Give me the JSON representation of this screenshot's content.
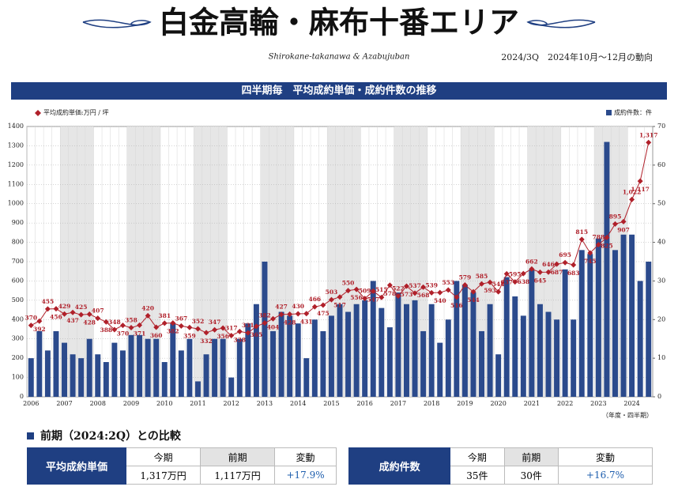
{
  "header": {
    "title": "白金高輪・麻布十番エリア",
    "subtitle": "Shirokane-takanawa & Azabujuban",
    "period": "2024/3Q　2024年10月～12月の動向",
    "section_title": "四半期毎　平均成約単価・成約件数の推移"
  },
  "chart_data": {
    "type": "bar-line",
    "x_note": "（年度・四半期）",
    "categories": [
      "2006",
      null,
      null,
      null,
      "2007",
      null,
      null,
      null,
      "2008",
      null,
      null,
      null,
      "2009",
      null,
      null,
      null,
      "2010",
      null,
      null,
      null,
      "2011",
      null,
      null,
      null,
      "2012",
      null,
      null,
      null,
      "2013",
      null,
      null,
      null,
      "2014",
      null,
      null,
      null,
      "2015",
      null,
      null,
      null,
      "2016",
      null,
      null,
      null,
      "2017",
      null,
      null,
      null,
      "2018",
      null,
      null,
      null,
      "2019",
      null,
      null,
      null,
      "2020",
      null,
      null,
      null,
      "2021",
      null,
      null,
      null,
      "2022",
      null,
      null,
      null,
      "2023",
      null,
      null,
      null,
      "2024",
      null,
      null
    ],
    "series": [
      {
        "name": "成約件数：件",
        "type": "bar",
        "axis": "y2",
        "color": "#2b4a8c",
        "values": [
          10,
          17,
          12,
          17,
          14,
          11,
          10,
          15,
          11,
          9,
          14,
          12,
          16,
          16,
          15,
          15,
          9,
          19,
          12,
          15,
          4,
          11,
          15,
          15,
          5,
          15,
          19,
          24,
          35,
          17,
          22,
          21,
          19,
          10,
          20,
          17,
          21,
          24,
          22,
          24,
          25,
          30,
          23,
          18,
          27,
          24,
          25,
          17,
          24,
          14,
          20,
          30,
          29,
          27,
          17,
          24,
          11,
          31,
          26,
          21,
          33,
          24,
          22,
          20,
          33,
          20,
          38,
          37,
          41,
          66,
          38,
          42,
          42,
          30,
          35
        ]
      },
      {
        "name": "平均成約単価:万円 / 坪",
        "type": "line",
        "axis": "y",
        "color": "#b0202a",
        "values": [
          370,
          392,
          455,
          456,
          429,
          437,
          425,
          428,
          407,
          388,
          348,
          370,
          358,
          371,
          420,
          360,
          381,
          382,
          367,
          359,
          352,
          332,
          347,
          356,
          317,
          338,
          331,
          365,
          382,
          404,
          427,
          428,
          430,
          431,
          466,
          475,
          503,
          517,
          550,
          556,
          509,
          547,
          515,
          578,
          522,
          573,
          537,
          568,
          539,
          540,
          553,
          516,
          579,
          544,
          585,
          593,
          544,
          637,
          595,
          638,
          662,
          645,
          646,
          687,
          695,
          683,
          815,
          745,
          788,
          825,
          895,
          907,
          1022,
          1117,
          1317
        ],
        "value_labels": [
          "370",
          "392",
          "455",
          "456",
          "429",
          "437",
          "425",
          "428",
          "407",
          "388",
          "348",
          "370",
          "358",
          "371",
          "420",
          "360",
          "381",
          "382",
          "367",
          "359",
          "352",
          "332",
          "347",
          "356",
          "317",
          "338",
          "331",
          "365",
          "382",
          "404",
          "427",
          "428",
          "430",
          "431",
          "466",
          "475",
          "503",
          "517",
          "550",
          "556",
          "509",
          "547",
          "515",
          "578",
          "522",
          "573",
          "537",
          "568",
          "539",
          "540",
          "553",
          "516",
          "579",
          "544",
          "585",
          "593",
          "544",
          "637",
          "595",
          "638",
          "662",
          "645",
          "646",
          "687",
          "695",
          "683",
          "815",
          "745",
          "788",
          "825",
          "895",
          "907",
          "1,022",
          "1,117",
          "1,317"
        ]
      }
    ],
    "ylim": [
      0,
      1400
    ],
    "yticks": [
      0,
      100,
      200,
      300,
      400,
      500,
      600,
      700,
      800,
      900,
      1000,
      1100,
      1200,
      1300,
      1400
    ],
    "y2lim": [
      0,
      70
    ],
    "y2ticks": [
      0,
      10,
      20,
      30,
      40,
      50,
      60,
      70
    ],
    "grid": true
  },
  "comparison": {
    "heading": "前期（2024:2Q）との比較",
    "tables": [
      {
        "label": "平均成約単価",
        "headers": [
          "今期",
          "前期",
          "変動"
        ],
        "cells": [
          "1,317万円",
          "1,117万円",
          "+17.9%"
        ]
      },
      {
        "label": "成約件数",
        "headers": [
          "今期",
          "前期",
          "変動"
        ],
        "cells": [
          "35件",
          "30件",
          "+16.7%"
        ]
      }
    ]
  }
}
